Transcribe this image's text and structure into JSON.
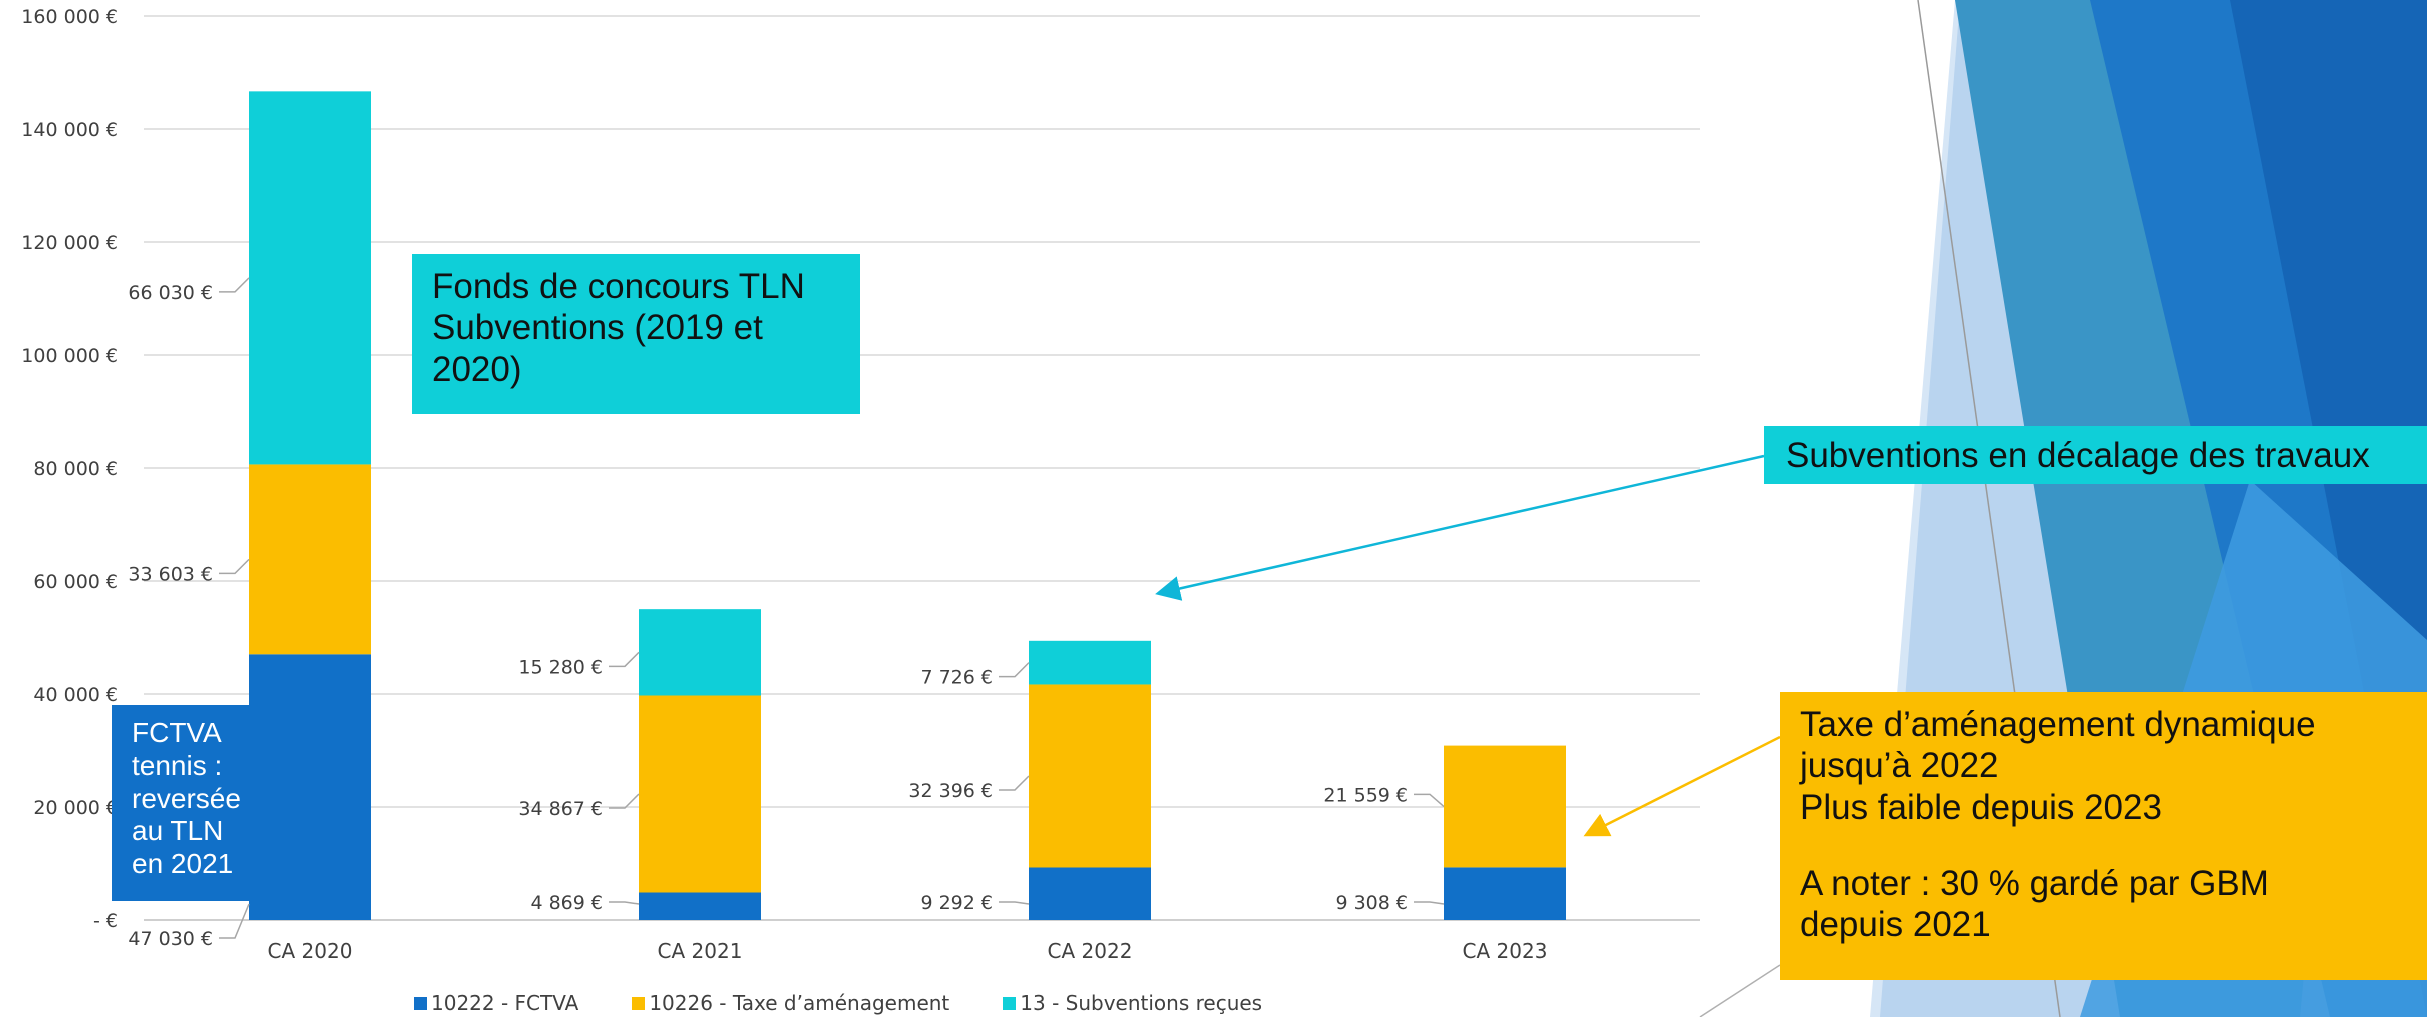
{
  "chart_data": {
    "type": "bar",
    "stacked": true,
    "categories": [
      "CA 2020",
      "CA 2021",
      "CA 2022",
      "CA 2023"
    ],
    "series": [
      {
        "name": "10222 - FCTVA",
        "color": "#1170c8",
        "values": [
          47030,
          4869,
          9292,
          9308
        ]
      },
      {
        "name": "10226 - Taxe d’aménagement",
        "color": "#fbbd00",
        "values": [
          33603,
          34867,
          32396,
          21559
        ]
      },
      {
        "name": "13 - Subventions reçues",
        "color": "#0fcfd8",
        "values": [
          66030,
          15280,
          7726,
          0
        ]
      }
    ],
    "data_labels": [
      [
        "47 030 €",
        "4 869 €",
        "9 292 €",
        "9 308 €"
      ],
      [
        "33 603 €",
        "34 867 €",
        "32 396 €",
        "21 559 €"
      ],
      [
        "66 030 €",
        "15 280 €",
        "7 726 €",
        ""
      ]
    ],
    "ylim": [
      0,
      160000
    ],
    "y_ticks": [
      0,
      20000,
      40000,
      60000,
      80000,
      100000,
      120000,
      140000,
      160000
    ],
    "y_tick_labels": [
      "-   €",
      "20 000 €",
      "40 000 €",
      "60 000 €",
      "80 000 €",
      "100 000 €",
      "120 000 €",
      "140 000 €",
      "160 000 €"
    ],
    "grid": true,
    "legend_position": "bottom"
  },
  "legend": {
    "items": [
      {
        "label": "10222 - FCTVA",
        "color": "#1170c8"
      },
      {
        "label": "10226 - Taxe d’aménagement",
        "color": "#fbbd00"
      },
      {
        "label": "13 - Subventions reçues",
        "color": "#0fcfd8"
      }
    ]
  },
  "callouts": {
    "tln": {
      "lines": [
        "Fonds de concours TLN",
        "Subventions (2019 et",
        "2020)"
      ],
      "color": "#0fcfd8"
    },
    "fctva": {
      "lines": [
        "FCTVA",
        "tennis :",
        "reversée",
        "au TLN",
        "en 2021"
      ],
      "color": "#1170c8"
    },
    "subventions": {
      "lines": [
        "Subventions en décalage des travaux"
      ],
      "color": "#0fcfd8"
    },
    "taxe": {
      "lines": [
        "Taxe d’aménagement dynamique",
        "jusqu’à 2022",
        "Plus faible depuis 2023",
        "",
        "A noter : 30 % gardé par GBM",
        "depuis 2021"
      ],
      "color": "#fbbd00"
    }
  },
  "colors": {
    "grid": "#d9d9d9",
    "text": "#404040",
    "deco_dark": "#1e6fc0",
    "deco_light": "#a9c8e8"
  }
}
